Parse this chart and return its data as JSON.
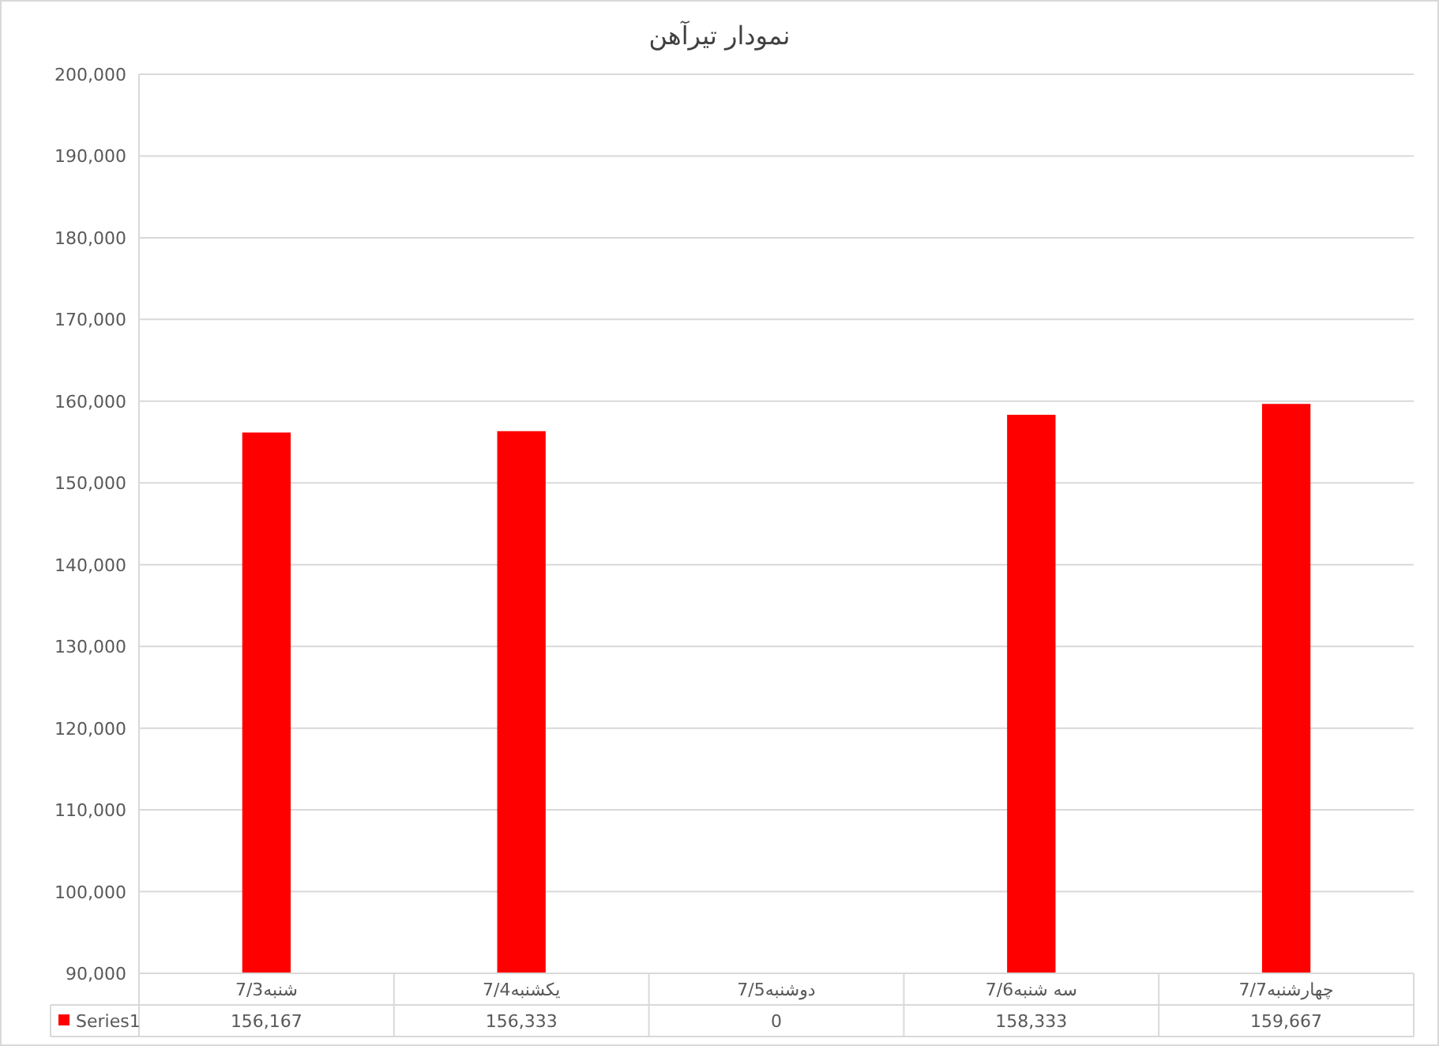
{
  "chart_data": {
    "type": "bar",
    "title": "نمودار تیرآهن",
    "categories": [
      "شنبه7/3",
      "یکشنبه7/4",
      "دوشنبه7/5",
      "سه شنبه7/6",
      "چهارشنبه7/7"
    ],
    "series": [
      {
        "name": "Series1",
        "color": "#ff0000",
        "values": [
          156167,
          156333,
          null,
          158333,
          159667
        ],
        "value_labels": [
          "156,167",
          "156,333",
          "0",
          "158,333",
          "159,667"
        ]
      }
    ],
    "ylim": [
      90000,
      200000
    ],
    "yticks": [
      {
        "value": 90000,
        "label": "90,000"
      },
      {
        "value": 100000,
        "label": "100,000"
      },
      {
        "value": 110000,
        "label": "110,000"
      },
      {
        "value": 120000,
        "label": "120,000"
      },
      {
        "value": 130000,
        "label": "130,000"
      },
      {
        "value": 140000,
        "label": "140,000"
      },
      {
        "value": 150000,
        "label": "150,000"
      },
      {
        "value": 160000,
        "label": "160,000"
      },
      {
        "value": 170000,
        "label": "170,000"
      },
      {
        "value": 180000,
        "label": "180,000"
      },
      {
        "value": 190000,
        "label": "190,000"
      },
      {
        "value": 200000,
        "label": "200,000"
      }
    ],
    "grid": "y"
  }
}
